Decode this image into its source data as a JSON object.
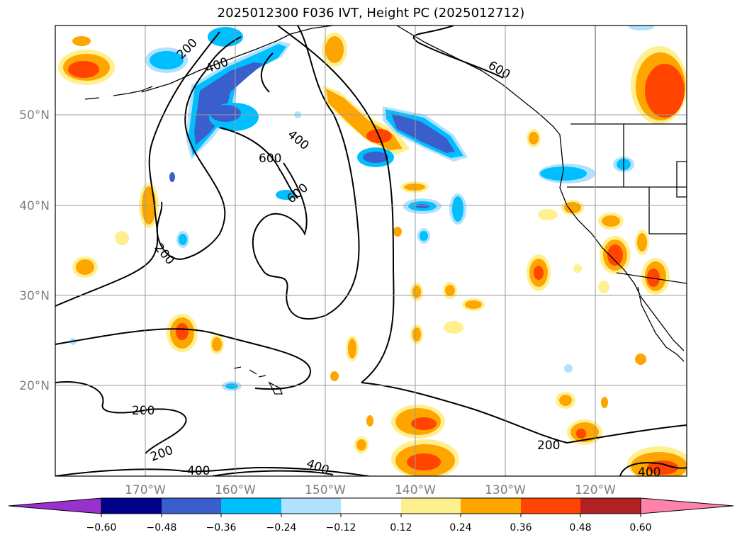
{
  "title": "2025012300 F036 IVT, Height PC (2025012712)",
  "lat_labels": [
    "50°N",
    "40°N",
    "30°N",
    "20°N"
  ],
  "lon_labels": [
    "170°W",
    "160°W",
    "150°W",
    "140°W",
    "130°W",
    "120°W"
  ],
  "contour_labels": {
    "c1": "200",
    "c2": "400",
    "c3": "600",
    "c4": "400",
    "c5": "600",
    "c6": "200",
    "c7": "200",
    "c8": "200",
    "c9": "400",
    "c10": "400",
    "c11": "200",
    "c12": "400",
    "c13": "600"
  },
  "colorbar": {
    "ticks": [
      "−0.60",
      "−0.48",
      "−0.36",
      "−0.24",
      "−0.12",
      "0.12",
      "0.24",
      "0.36",
      "0.48",
      "0.60"
    ],
    "colors": [
      "#9932cc",
      "#00008b",
      "#3a5fcd",
      "#00bfff",
      "#b0e2ff",
      "#ffffff",
      "#fff08f",
      "#ffa500",
      "#ff4500",
      "#b22222",
      "#ff82ab"
    ]
  }
}
